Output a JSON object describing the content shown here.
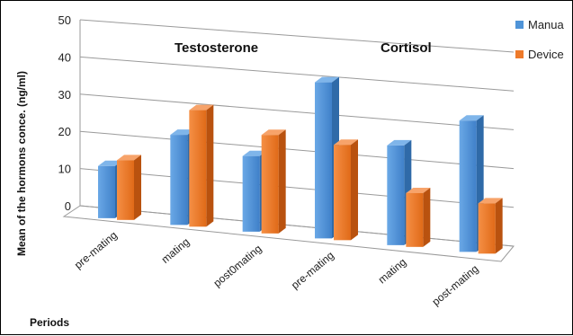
{
  "chart_data": {
    "type": "bar",
    "title": "",
    "xlabel": "Periods",
    "ylabel": "Mean of the  hormons conce. (ng/ml)",
    "ylim": [
      0,
      50
    ],
    "yticks": [
      "0",
      "10",
      "20",
      "30",
      "40",
      "50"
    ],
    "grid": true,
    "legend_position": "top-right",
    "groups": [
      {
        "label": "Testosterone",
        "category_indices": [
          0,
          1,
          2
        ]
      },
      {
        "label": "Cortisol",
        "category_indices": [
          3,
          4,
          5
        ]
      }
    ],
    "categories": [
      "pre-mating",
      "mating",
      "post0mating",
      "pre-mating",
      "mating",
      "post-mating"
    ],
    "series": [
      {
        "name": "Manua",
        "color": "#4f94d8",
        "values": [
          14,
          24,
          20,
          41,
          26,
          34
        ]
      },
      {
        "name": "Device",
        "color": "#ee7a2a",
        "values": [
          16,
          31,
          26,
          25,
          14,
          13
        ]
      }
    ]
  }
}
